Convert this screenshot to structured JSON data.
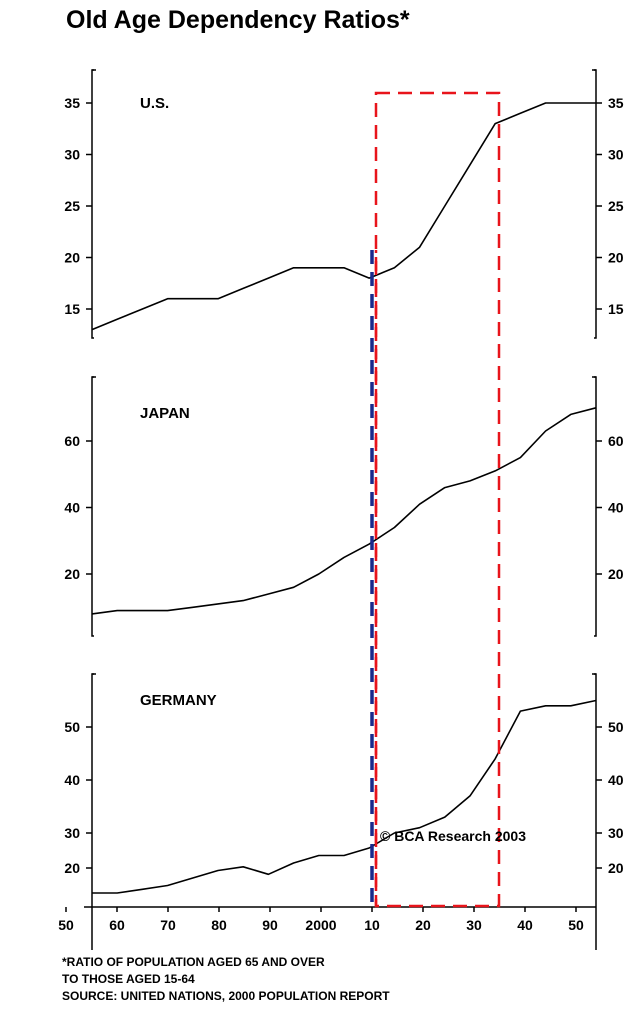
{
  "title": "Old Age Dependency Ratios*",
  "credit": "© BCA Research 2003",
  "footnote": {
    "line1": "*RATIO OF POPULATION AGED 65 AND OVER",
    "line2": "TO THOSE AGED 15-64",
    "line3": "SOURCE:  UNITED NATIONS, 2000 POPULATION REPORT"
  },
  "colors": {
    "line": "#000000",
    "highlight_box": "#e8141b",
    "vertical_marker": "#1a2a8c"
  },
  "chart_data": [
    {
      "type": "line",
      "label": "U.S.",
      "x": [
        1950,
        1955,
        1960,
        1965,
        1970,
        1975,
        1980,
        1985,
        1990,
        1995,
        2000,
        2005,
        2010,
        2015,
        2020,
        2025,
        2030,
        2035,
        2040,
        2045,
        2050
      ],
      "y": [
        13,
        14,
        15,
        16,
        16,
        16,
        17,
        18,
        19,
        19,
        19,
        18,
        19,
        21,
        25,
        29,
        33,
        34,
        35,
        35,
        35
      ],
      "ylim": [
        12.5,
        38
      ],
      "yticks": [
        15,
        20,
        25,
        30,
        35
      ]
    },
    {
      "type": "line",
      "label": "JAPAN",
      "x": [
        1950,
        1955,
        1960,
        1965,
        1970,
        1975,
        1980,
        1985,
        1990,
        1995,
        2000,
        2005,
        2010,
        2015,
        2020,
        2025,
        2030,
        2035,
        2040,
        2045,
        2050
      ],
      "y": [
        8,
        9,
        9,
        9,
        10,
        11,
        12,
        14,
        16,
        20,
        25,
        29,
        34,
        41,
        46,
        48,
        51,
        55,
        63,
        68,
        70
      ],
      "ylim": [
        0,
        80
      ],
      "yticks": [
        20,
        40,
        60
      ]
    },
    {
      "type": "line",
      "label": "GERMANY",
      "x": [
        1950,
        1955,
        1960,
        1965,
        1970,
        1975,
        1980,
        1985,
        1990,
        1995,
        2000,
        2005,
        2010,
        2015,
        2020,
        2025,
        2030,
        2035,
        2040,
        2045,
        2050
      ],
      "y": [
        14,
        14,
        15,
        16,
        18,
        20,
        21,
        19,
        22,
        24,
        24,
        26,
        30,
        31,
        33,
        37,
        44,
        53,
        54,
        54,
        55
      ],
      "yticks_lower": [
        20
      ],
      "yticks_upper": [
        30,
        40,
        50
      ]
    }
  ],
  "x_axis": {
    "tick_labels": [
      "50",
      "60",
      "70",
      "80",
      "90",
      "2000",
      "10",
      "20",
      "30",
      "40",
      "50"
    ],
    "tick_years": [
      1950,
      1960,
      1970,
      1980,
      1990,
      2000,
      2010,
      2020,
      2030,
      2040,
      2050
    ]
  },
  "highlight": {
    "x_start": 2010,
    "x_end": 2035
  }
}
